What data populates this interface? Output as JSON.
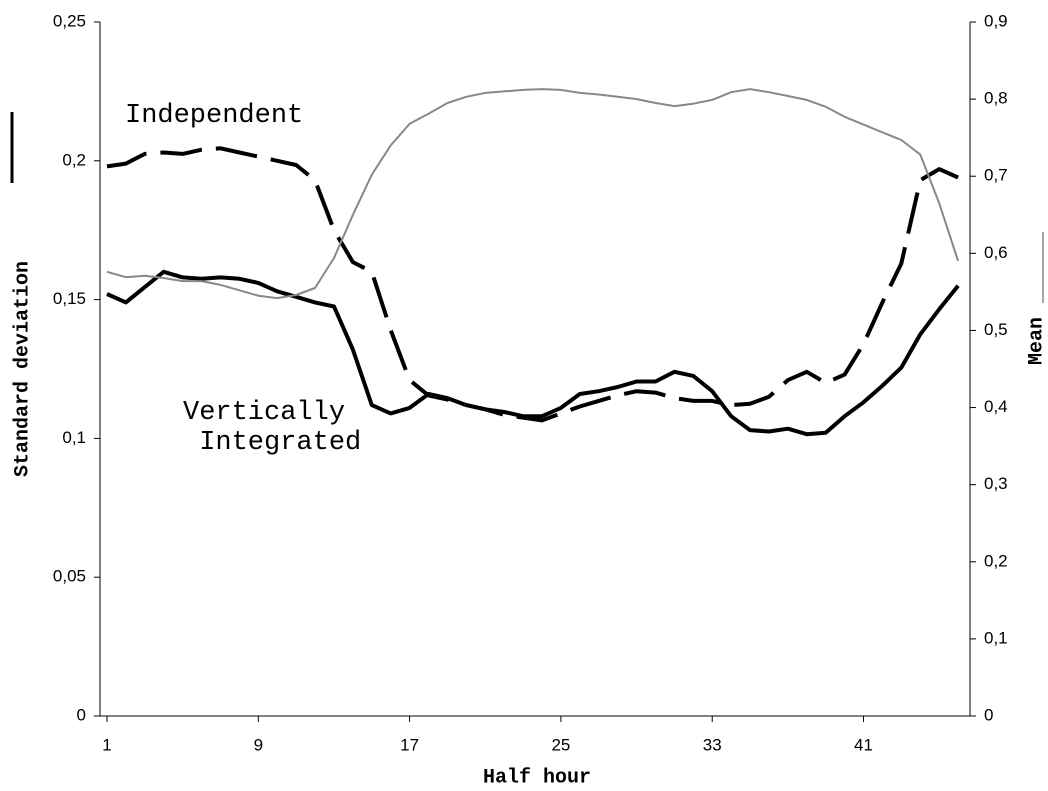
{
  "chart_data": {
    "type": "line",
    "xlabel": "Half hour",
    "ylabel": "Standard deviation",
    "y2label": "Mean",
    "categories": [
      "1",
      null,
      null,
      null,
      null,
      null,
      null,
      null,
      "9",
      null,
      null,
      null,
      null,
      null,
      null,
      null,
      "17",
      null,
      null,
      null,
      null,
      null,
      null,
      null,
      "25",
      null,
      null,
      null,
      null,
      null,
      null,
      null,
      "33",
      null,
      null,
      null,
      null,
      null,
      null,
      null,
      "41",
      null,
      null,
      null,
      null,
      null
    ],
    "ylim": [
      0,
      0.25
    ],
    "yticks": [
      0,
      {
        "value": 0.05,
        "label": "0,05"
      },
      {
        "value": 0.1,
        "label": "0,1"
      },
      {
        "value": 0.15,
        "label": "0,15"
      },
      {
        "value": 0.2,
        "label": "0,2"
      },
      {
        "value": 0.25,
        "label": "0,25"
      }
    ],
    "y2lim": [
      0,
      0.9
    ],
    "y2ticks": [
      0,
      {
        "value": 0.1,
        "label": "0,1"
      },
      {
        "value": 0.2,
        "label": "0,2"
      },
      {
        "value": 0.3,
        "label": "0,3"
      },
      {
        "value": 0.4,
        "label": "0,4"
      },
      {
        "value": 0.5,
        "label": "0,5"
      },
      {
        "value": 0.6,
        "label": "0,6"
      },
      {
        "value": 0.7,
        "label": "0,7"
      },
      {
        "value": 0.8,
        "label": "0,8"
      },
      {
        "value": 0.9,
        "label": "0,9"
      }
    ],
    "series": [
      {
        "name": "Independent",
        "color": "#000000",
        "dashed": true,
        "values": [
          0.198,
          0.199,
          0.2025,
          0.203,
          0.2025,
          0.204,
          0.2045,
          0.203,
          0.2015,
          0.2,
          0.1985,
          0.193,
          0.175,
          0.1635,
          0.16,
          0.139,
          0.121,
          0.1155,
          0.114,
          0.112,
          0.1105,
          0.1085,
          0.1075,
          0.1065,
          0.109,
          0.1115,
          0.1135,
          0.1155,
          0.117,
          0.1165,
          0.1145,
          0.1135,
          0.1135,
          0.112,
          0.1125,
          0.115,
          0.121,
          0.124,
          0.12,
          0.123,
          0.134,
          0.149,
          0.163,
          0.193,
          0.197,
          0.194
        ]
      },
      {
        "name": "Vertically Integrated",
        "color": "#000000",
        "dashed": false,
        "values": [
          0.152,
          0.149,
          0.1545,
          0.16,
          0.158,
          0.1575,
          0.158,
          0.1575,
          0.156,
          0.153,
          0.151,
          0.149,
          0.1475,
          0.132,
          0.112,
          0.109,
          0.111,
          0.116,
          0.1145,
          0.112,
          0.1105,
          0.1095,
          0.108,
          0.108,
          0.111,
          0.116,
          0.117,
          0.1185,
          0.1205,
          0.1205,
          0.124,
          0.1225,
          0.117,
          0.108,
          0.103,
          0.1025,
          0.1035,
          0.1015,
          0.102,
          0.108,
          0.113,
          0.119,
          0.1255,
          0.1375,
          0.1465,
          0.155
        ]
      },
      {
        "color": "#888888",
        "axis": "y2",
        "values": [
          0.576,
          0.569,
          0.571,
          0.568,
          0.564,
          0.564,
          0.559,
          0.552,
          0.545,
          0.542,
          0.546,
          0.555,
          0.594,
          0.65,
          0.702,
          0.74,
          0.768,
          0.781,
          0.795,
          0.803,
          0.808,
          0.81,
          0.812,
          0.813,
          0.812,
          0.808,
          0.806,
          0.803,
          0.8,
          0.795,
          0.791,
          0.794,
          0.799,
          0.809,
          0.813,
          0.809,
          0.804,
          0.799,
          0.79,
          0.777,
          0.767,
          0.757,
          0.747,
          0.728,
          0.665,
          0.59
        ]
      }
    ]
  }
}
